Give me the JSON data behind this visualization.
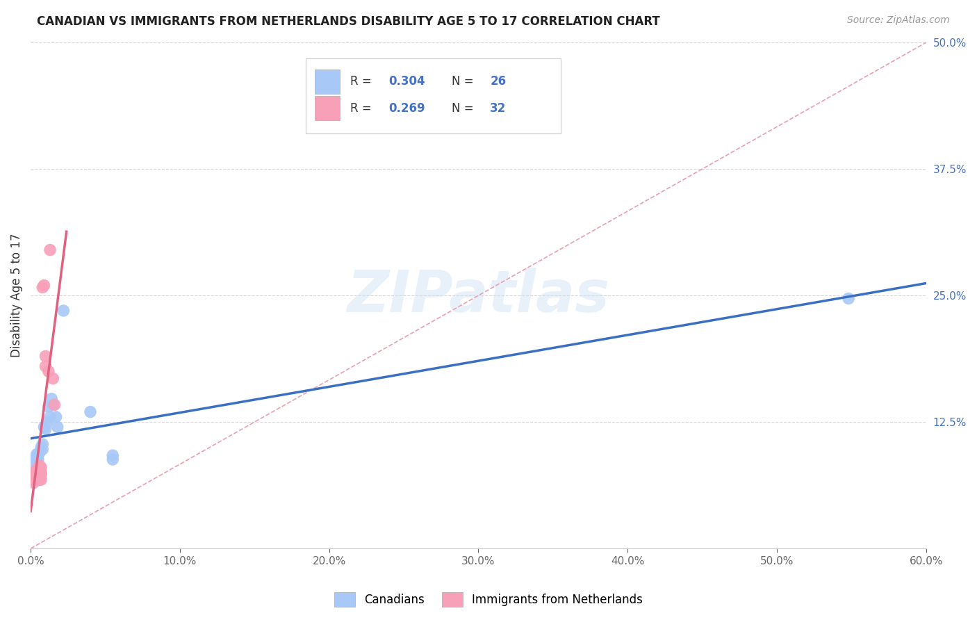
{
  "title": "CANADIAN VS IMMIGRANTS FROM NETHERLANDS DISABILITY AGE 5 TO 17 CORRELATION CHART",
  "source": "Source: ZipAtlas.com",
  "ylabel": "Disability Age 5 to 17",
  "xmin": 0.0,
  "xmax": 0.6,
  "ymin": 0.0,
  "ymax": 0.5,
  "xticks": [
    0.0,
    0.1,
    0.2,
    0.3,
    0.4,
    0.5,
    0.6
  ],
  "yticks": [
    0.0,
    0.125,
    0.25,
    0.375,
    0.5
  ],
  "ytick_labels": [
    "",
    "12.5%",
    "25.0%",
    "37.5%",
    "50.0%"
  ],
  "xtick_labels": [
    "0.0%",
    "10.0%",
    "20.0%",
    "30.0%",
    "40.0%",
    "50.0%",
    "60.0%"
  ],
  "canadian_color": "#a8c8f8",
  "netherlands_color": "#f8a0b8",
  "canadian_line_color": "#3a6fc4",
  "netherlands_line_color": "#e06080",
  "diag_color": "#e8a0b0",
  "legend_label_canadian": "Canadians",
  "legend_label_netherlands": "Immigrants from Netherlands",
  "watermark": "ZIPatlas",
  "canadian_x": [
    0.001,
    0.002,
    0.003,
    0.003,
    0.004,
    0.004,
    0.005,
    0.005,
    0.006,
    0.007,
    0.008,
    0.008,
    0.009,
    0.01,
    0.011,
    0.012,
    0.013,
    0.014,
    0.015,
    0.017,
    0.018,
    0.022,
    0.04,
    0.055,
    0.055,
    0.548
  ],
  "canadian_y": [
    0.075,
    0.08,
    0.083,
    0.088,
    0.09,
    0.093,
    0.088,
    0.092,
    0.095,
    0.1,
    0.098,
    0.103,
    0.12,
    0.118,
    0.125,
    0.14,
    0.13,
    0.148,
    0.142,
    0.13,
    0.12,
    0.235,
    0.135,
    0.088,
    0.092,
    0.247
  ],
  "netherlands_x": [
    0.001,
    0.001,
    0.001,
    0.002,
    0.002,
    0.002,
    0.003,
    0.003,
    0.003,
    0.004,
    0.004,
    0.004,
    0.004,
    0.005,
    0.005,
    0.005,
    0.006,
    0.006,
    0.006,
    0.006,
    0.007,
    0.007,
    0.007,
    0.007,
    0.008,
    0.009,
    0.01,
    0.01,
    0.012,
    0.013,
    0.015,
    0.016
  ],
  "netherlands_y": [
    0.07,
    0.072,
    0.068,
    0.065,
    0.072,
    0.07,
    0.068,
    0.072,
    0.075,
    0.07,
    0.073,
    0.075,
    0.078,
    0.07,
    0.073,
    0.077,
    0.068,
    0.073,
    0.076,
    0.082,
    0.068,
    0.073,
    0.075,
    0.08,
    0.258,
    0.26,
    0.19,
    0.18,
    0.175,
    0.295,
    0.168,
    0.142
  ]
}
